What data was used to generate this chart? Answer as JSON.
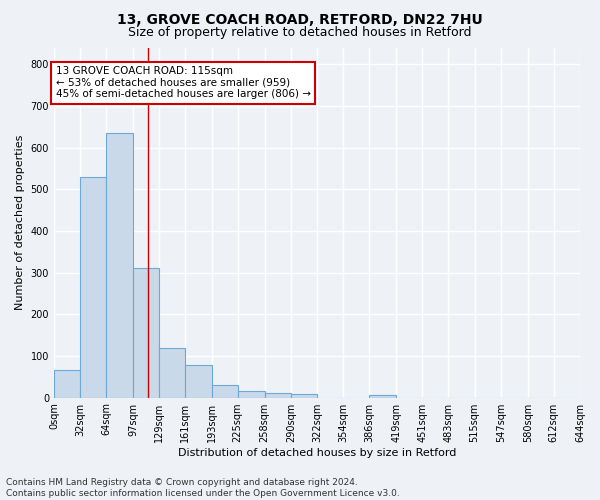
{
  "title1": "13, GROVE COACH ROAD, RETFORD, DN22 7HU",
  "title2": "Size of property relative to detached houses in Retford",
  "xlabel": "Distribution of detached houses by size in Retford",
  "ylabel": "Number of detached properties",
  "bar_color": "#c9d9ea",
  "bar_edge_color": "#6aaad4",
  "annotation_line": "13 GROVE COACH ROAD: 115sqm",
  "annotation_line2": "← 53% of detached houses are smaller (959)",
  "annotation_line3": "45% of semi-detached houses are larger (806) →",
  "annotation_box_color": "white",
  "annotation_box_edge_color": "#cc0000",
  "property_size_sqm": 115,
  "vline_color": "#cc0000",
  "bin_edges": [
    0,
    32,
    64,
    97,
    129,
    161,
    193,
    225,
    258,
    290,
    322,
    354,
    386,
    419,
    451,
    483,
    515,
    547,
    580,
    612,
    644
  ],
  "bar_heights": [
    65,
    530,
    635,
    310,
    120,
    78,
    30,
    15,
    10,
    8,
    0,
    0,
    5,
    0,
    0,
    0,
    0,
    0,
    0,
    0
  ],
  "tick_labels": [
    "0sqm",
    "32sqm",
    "64sqm",
    "97sqm",
    "129sqm",
    "161sqm",
    "193sqm",
    "225sqm",
    "258sqm",
    "290sqm",
    "322sqm",
    "354sqm",
    "386sqm",
    "419sqm",
    "451sqm",
    "483sqm",
    "515sqm",
    "547sqm",
    "580sqm",
    "612sqm",
    "644sqm"
  ],
  "ylim": [
    0,
    840
  ],
  "yticks": [
    0,
    100,
    200,
    300,
    400,
    500,
    600,
    700,
    800
  ],
  "footer_text": "Contains HM Land Registry data © Crown copyright and database right 2024.\nContains public sector information licensed under the Open Government Licence v3.0.",
  "background_color": "#eef2f7",
  "plot_background_color": "#eef2f7",
  "grid_color": "#ffffff",
  "title1_fontsize": 10,
  "title2_fontsize": 9,
  "annotation_fontsize": 7.5,
  "axis_label_fontsize": 8,
  "tick_fontsize": 7,
  "ylabel_fontsize": 8,
  "footer_fontsize": 6.5
}
